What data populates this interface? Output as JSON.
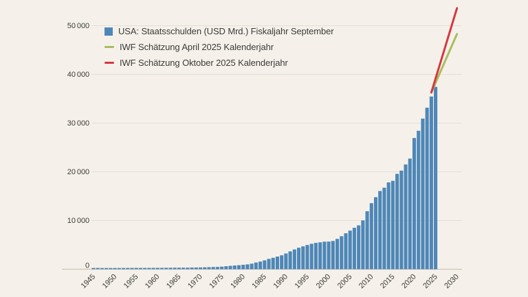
{
  "colors": {
    "background": "#f5f1ea",
    "bar": "#4e87b7",
    "line_april": "#a9bd5e",
    "line_october": "#d5383f",
    "grid": "#e4dfd5",
    "zero_line": "#c9c3b8",
    "text": "#3c3b38"
  },
  "legend": {
    "items": [
      {
        "marker": "square",
        "color_key": "bar",
        "label": "USA: Staatsschulden (USD Mrd.) Fiskaljahr September"
      },
      {
        "marker": "line",
        "color_key": "line_april",
        "label": "IWF Schätzung April 2025 Kalenderjahr"
      },
      {
        "marker": "line",
        "color_key": "line_october",
        "label": "IWF Schätzung Oktober 2025 Kalenderjahr"
      }
    ]
  },
  "chart_data": {
    "type": "bar",
    "title": "",
    "xlabel": "",
    "ylabel": "",
    "grid": true,
    "legend_position": "top-left",
    "ylim": [
      0,
      50000
    ],
    "xlim": [
      1943,
      2032
    ],
    "yticks": [
      0,
      10000,
      20000,
      30000,
      40000,
      50000
    ],
    "ytick_labels": [
      "0",
      "10 000",
      "20 000",
      "30 000",
      "40 000",
      "50 000"
    ],
    "xticks": [
      1945,
      1950,
      1955,
      1960,
      1965,
      1970,
      1975,
      1980,
      1985,
      1990,
      1995,
      2000,
      2005,
      2010,
      2015,
      2020,
      2025,
      2030
    ],
    "bar_series": {
      "name": "USA: Staatsschulden (USD Mrd.) Fiskaljahr September",
      "x": [
        1945,
        1946,
        1947,
        1948,
        1949,
        1950,
        1951,
        1952,
        1953,
        1954,
        1955,
        1956,
        1957,
        1958,
        1959,
        1960,
        1961,
        1962,
        1963,
        1964,
        1965,
        1966,
        1967,
        1968,
        1969,
        1970,
        1971,
        1972,
        1973,
        1974,
        1975,
        1976,
        1977,
        1978,
        1979,
        1980,
        1981,
        1982,
        1983,
        1984,
        1985,
        1986,
        1987,
        1988,
        1989,
        1990,
        1991,
        1992,
        1993,
        1994,
        1995,
        1996,
        1997,
        1998,
        1999,
        2000,
        2001,
        2002,
        2003,
        2004,
        2005,
        2006,
        2007,
        2008,
        2009,
        2010,
        2011,
        2012,
        2013,
        2014,
        2015,
        2016,
        2017,
        2018,
        2019,
        2020,
        2021,
        2022,
        2023,
        2024,
        2025
      ],
      "values": [
        260,
        271,
        257,
        252,
        253,
        257,
        255,
        259,
        266,
        271,
        274,
        273,
        271,
        276,
        285,
        286,
        289,
        298,
        306,
        312,
        317,
        320,
        326,
        348,
        354,
        371,
        398,
        427,
        458,
        475,
        533,
        620,
        699,
        772,
        827,
        908,
        998,
        1142,
        1377,
        1572,
        1823,
        2125,
        2350,
        2602,
        2857,
        3233,
        3665,
        4065,
        4411,
        4693,
        4974,
        5225,
        5413,
        5526,
        5656,
        5674,
        5807,
        6228,
        6783,
        7379,
        7933,
        8507,
        9008,
        10025,
        11910,
        13562,
        14790,
        16066,
        16738,
        17824,
        18151,
        19573,
        20245,
        21516,
        22719,
        26945,
        28429,
        30929,
        33167,
        35465,
        37450
      ]
    },
    "line_series": [
      {
        "name": "IWF Schätzung April 2025 Kalenderjahr",
        "x": [
          2024,
          2030
        ],
        "values": [
          36300,
          48300
        ],
        "color_key": "line_april"
      },
      {
        "name": "IWF Schätzung Oktober 2025 Kalenderjahr",
        "x": [
          2024,
          2030
        ],
        "values": [
          36300,
          53600
        ],
        "color_key": "line_october"
      }
    ]
  }
}
